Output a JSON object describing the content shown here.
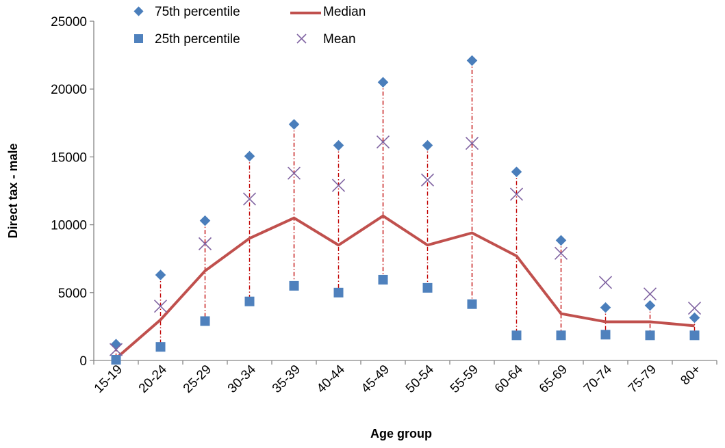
{
  "chart_data": {
    "type": "line",
    "title": "",
    "xlabel": "Age group",
    "ylabel": "Direct tax - male",
    "ylim": [
      0,
      25000
    ],
    "yticks": [
      0,
      5000,
      10000,
      15000,
      20000,
      25000
    ],
    "grid": false,
    "legend_position": "top",
    "categories": [
      "15-19",
      "20-24",
      "25-29",
      "30-34",
      "35-39",
      "40-44",
      "45-49",
      "50-54",
      "55-59",
      "60-64",
      "65-69",
      "70-74",
      "75-79",
      "80+"
    ],
    "series": [
      {
        "name": "75th percentile",
        "marker": "diamond",
        "color": "#4a7ebb",
        "values": [
          1200,
          6300,
          10300,
          15050,
          17400,
          15850,
          20500,
          15850,
          22100,
          13900,
          8850,
          3900,
          4050,
          3150
        ]
      },
      {
        "name": "25th percentile",
        "marker": "square",
        "color": "#4f81bd",
        "values": [
          50,
          1000,
          2900,
          4350,
          5500,
          5000,
          5950,
          5350,
          4150,
          1850,
          1850,
          1900,
          1850,
          1850
        ]
      },
      {
        "name": "Median",
        "marker": "line",
        "color": "#c0504d",
        "values": [
          150,
          3000,
          6600,
          9000,
          10500,
          8500,
          10650,
          8500,
          9400,
          7700,
          3450,
          2850,
          2850,
          2550
        ]
      },
      {
        "name": "Mean",
        "marker": "x",
        "color": "#8064a2",
        "values": [
          800,
          4000,
          8600,
          11900,
          13800,
          12900,
          16100,
          13300,
          16000,
          12250,
          7900,
          5750,
          4900,
          3850
        ]
      }
    ],
    "range_lines": {
      "from": "25th percentile",
      "to": "75th percentile",
      "color": "#c00000",
      "style": "dash-dot"
    }
  }
}
